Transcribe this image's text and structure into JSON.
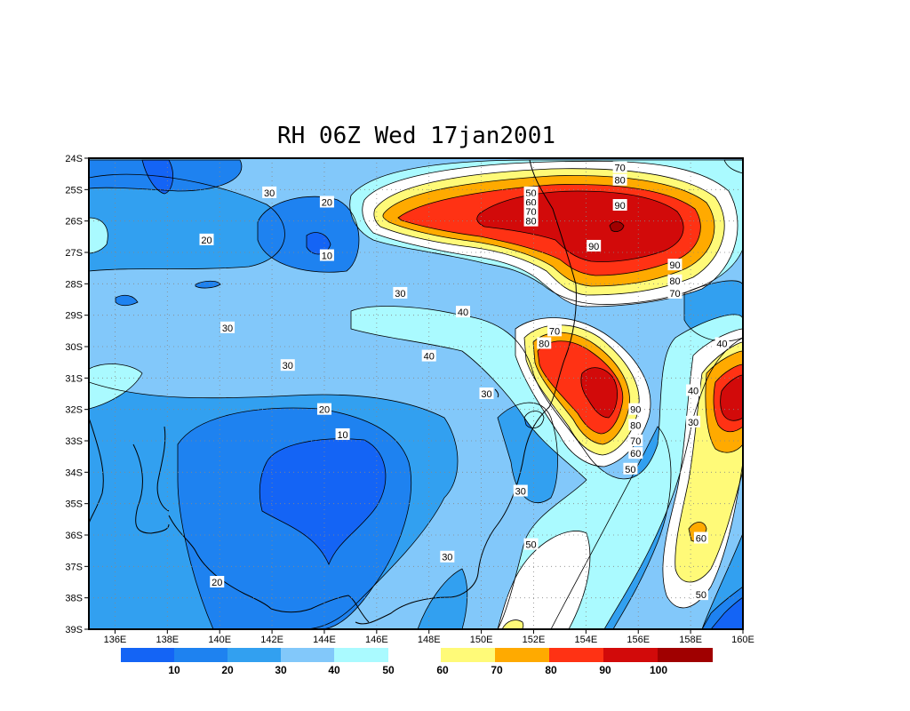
{
  "title": "RH 06Z Wed 17jan2001",
  "colors": {
    "levels": [
      "#1464f5",
      "#1e82f0",
      "#32a0f0",
      "#82c8fa",
      "#aafaff",
      "#ffffff",
      "#fffa78",
      "#ffaa00",
      "#ff3214",
      "#d20a0a",
      "#a00000"
    ],
    "coast": "#000000",
    "contour": "#000000",
    "grid": "#888888"
  },
  "chart_data": {
    "type": "heatmap",
    "variable": "RH",
    "xlim": [
      135,
      160
    ],
    "ylim": [
      -39,
      -24
    ],
    "x_ticks": [
      "136E",
      "138E",
      "140E",
      "142E",
      "144E",
      "146E",
      "148E",
      "150E",
      "152E",
      "154E",
      "156E",
      "158E",
      "160E"
    ],
    "y_ticks": [
      "24S",
      "25S",
      "26S",
      "27S",
      "28S",
      "29S",
      "30S",
      "31S",
      "32S",
      "33S",
      "34S",
      "35S",
      "36S",
      "37S",
      "38S",
      "39S"
    ],
    "colorbar_levels": [
      "10",
      "20",
      "30",
      "40",
      "50",
      "60",
      "70",
      "80",
      "90",
      "100"
    ],
    "contour_labels": [
      {
        "text": "30",
        "lon": 141.9,
        "lat": -25.1
      },
      {
        "text": "20",
        "lon": 139.5,
        "lat": -26.6
      },
      {
        "text": "20",
        "lon": 144.1,
        "lat": -25.4
      },
      {
        "text": "10",
        "lon": 144.1,
        "lat": -27.1
      },
      {
        "text": "30",
        "lon": 146.9,
        "lat": -28.3
      },
      {
        "text": "40",
        "lon": 149.3,
        "lat": -28.9
      },
      {
        "text": "30",
        "lon": 140.3,
        "lat": -29.4
      },
      {
        "text": "30",
        "lon": 142.6,
        "lat": -30.6
      },
      {
        "text": "40",
        "lon": 148.0,
        "lat": -30.3
      },
      {
        "text": "20",
        "lon": 144.0,
        "lat": -32.0
      },
      {
        "text": "10",
        "lon": 144.7,
        "lat": -32.8
      },
      {
        "text": "20",
        "lon": 139.9,
        "lat": -37.5
      },
      {
        "text": "30",
        "lon": 150.2,
        "lat": -31.5
      },
      {
        "text": "30",
        "lon": 151.5,
        "lat": -34.6
      },
      {
        "text": "30",
        "lon": 148.7,
        "lat": -36.7
      },
      {
        "text": "50",
        "lon": 151.9,
        "lat": -36.3
      },
      {
        "text": "50",
        "lon": 151.9,
        "lat": -25.1
      },
      {
        "text": "60",
        "lon": 151.9,
        "lat": -25.4
      },
      {
        "text": "70",
        "lon": 151.9,
        "lat": -25.7
      },
      {
        "text": "80",
        "lon": 151.9,
        "lat": -26.0
      },
      {
        "text": "70",
        "lon": 155.3,
        "lat": -24.3
      },
      {
        "text": "80",
        "lon": 155.3,
        "lat": -24.7
      },
      {
        "text": "90",
        "lon": 155.3,
        "lat": -25.5
      },
      {
        "text": "90",
        "lon": 154.3,
        "lat": -26.8
      },
      {
        "text": "90",
        "lon": 157.4,
        "lat": -27.4
      },
      {
        "text": "80",
        "lon": 157.4,
        "lat": -27.9
      },
      {
        "text": "70",
        "lon": 157.4,
        "lat": -28.3
      },
      {
        "text": "70",
        "lon": 152.8,
        "lat": -29.5
      },
      {
        "text": "80",
        "lon": 152.4,
        "lat": -29.9
      },
      {
        "text": "90",
        "lon": 155.9,
        "lat": -32.0
      },
      {
        "text": "80",
        "lon": 155.9,
        "lat": -32.5
      },
      {
        "text": "70",
        "lon": 155.9,
        "lat": -33.0
      },
      {
        "text": "60",
        "lon": 155.9,
        "lat": -33.4
      },
      {
        "text": "50",
        "lon": 155.7,
        "lat": -33.9
      },
      {
        "text": "40",
        "lon": 158.1,
        "lat": -31.4
      },
      {
        "text": "30",
        "lon": 158.1,
        "lat": -32.4
      },
      {
        "text": "40",
        "lon": 159.2,
        "lat": -29.9
      },
      {
        "text": "60",
        "lon": 158.4,
        "lat": -36.1
      },
      {
        "text": "50",
        "lon": 158.4,
        "lat": -37.9
      }
    ]
  }
}
